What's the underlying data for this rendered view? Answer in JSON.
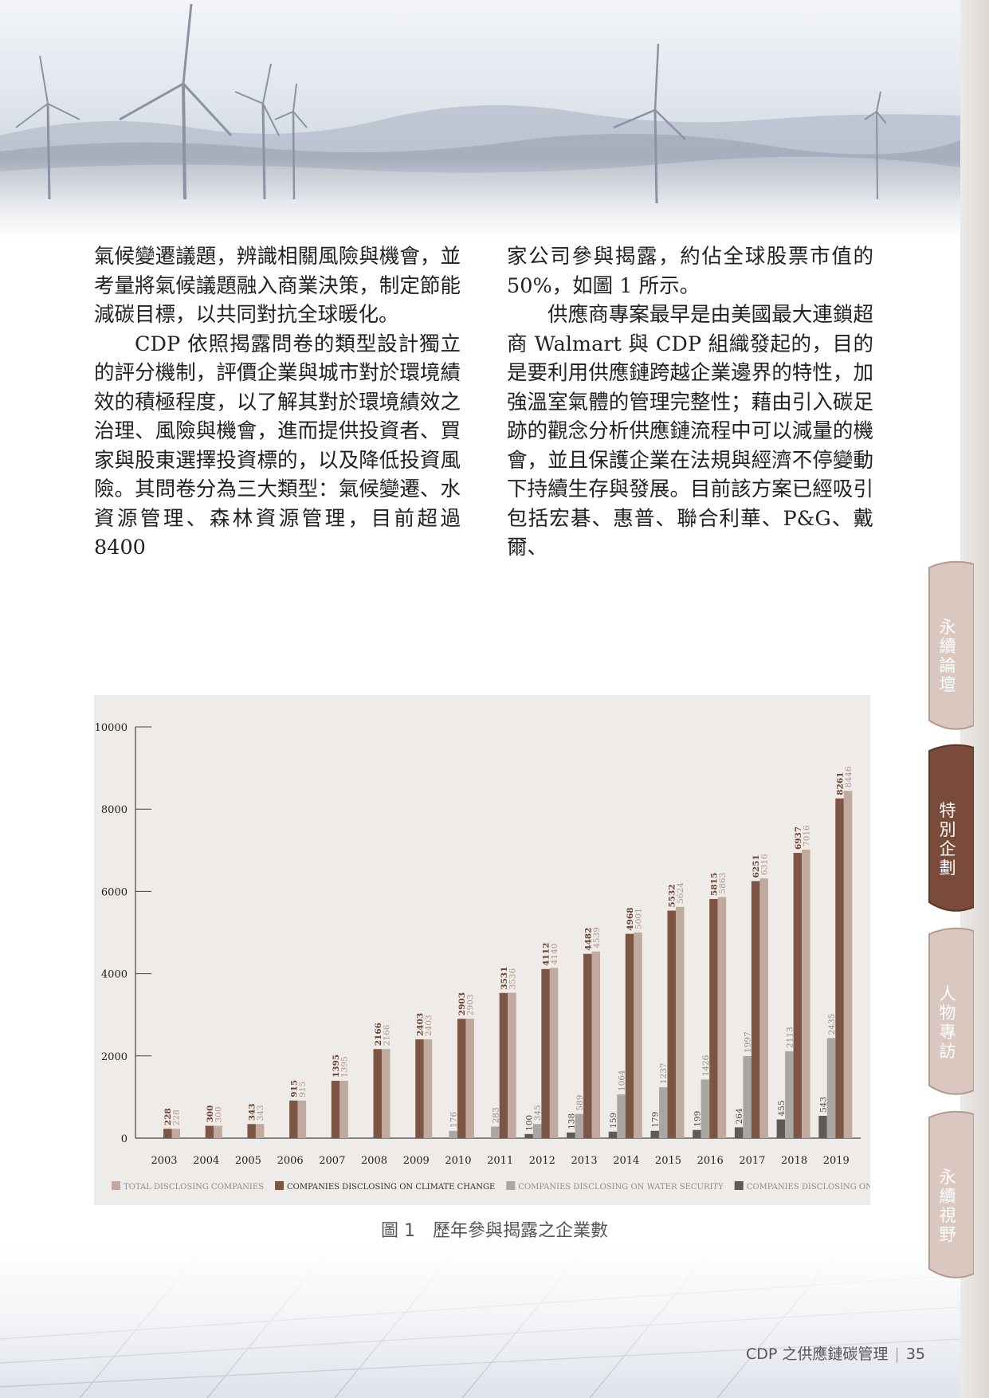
{
  "body": {
    "col_left": [
      "氣候變遷議題，辨識相關風險與機會，並考量將氣候議題融入商業決策，制定節能減碳目標，以共同對抗全球暖化。",
      "CDP 依照揭露問卷的類型設計獨立的評分機制，評價企業與城市對於環境績效的積極程度，以了解其對於環境績效之治理、風險與機會，進而提供投資者、買家與股東選擇投資標的，以及降低投資風險。其問卷分為三大類型：氣候變遷、水資源管理、森林資源管理，目前超過 8400"
    ],
    "col_right": [
      "家公司參與揭露，約佔全球股票市值的 50%，如圖 1 所示。",
      "供應商專案最早是由美國最大連鎖超商 Walmart 與 CDP 組織發起的，目的是要利用供應鏈跨越企業邊界的特性，加強溫室氣體的管理完整性；藉由引入碳足跡的觀念分析供應鏈流程中可以減量的機會，並且保護企業在法規與經濟不停變動下持續生存與發展。目前該方案已經吸引包括宏碁、惠普、聯合利華、P&G、戴爾、"
    ]
  },
  "caption": {
    "number": "圖 1",
    "text": "歷年參與揭露之企業數"
  },
  "footer": {
    "title": "CDP 之供應鏈碳管理",
    "page": "35"
  },
  "side_tabs": [
    {
      "label": "永續論壇",
      "active": false
    },
    {
      "label": "特別企劃",
      "active": true
    },
    {
      "label": "人物專訪",
      "active": false
    },
    {
      "label": "永續視野",
      "active": false
    }
  ],
  "colors": {
    "total": "#c0a99d",
    "climate": "#7d5544",
    "water": "#a9a6a4",
    "forests": "#5d5a58",
    "panel": "#efebe8",
    "tab_active": "#7a4a3a",
    "tab_inactive": "#d7c4bd"
  },
  "chart_data": {
    "type": "bar",
    "categories": [
      "2003",
      "2004",
      "2005",
      "2006",
      "2007",
      "2008",
      "2009",
      "2010",
      "2011",
      "2012",
      "2013",
      "2014",
      "2015",
      "2016",
      "2017",
      "2018",
      "2019"
    ],
    "ylim": [
      0,
      10000
    ],
    "yticks": [
      "0",
      "2000",
      "4000",
      "6000",
      "8000",
      "10000"
    ],
    "legend_position": "bottom",
    "series": [
      {
        "key": "forests",
        "name": "COMPANIES DISCLOSING ON FORESTS",
        "values": [
          null,
          null,
          null,
          null,
          null,
          null,
          null,
          null,
          null,
          100,
          138,
          159,
          179,
          199,
          264,
          455,
          543
        ]
      },
      {
        "key": "water",
        "name": "COMPANIES DISCLOSING ON WATER SECURITY",
        "values": [
          null,
          null,
          null,
          null,
          null,
          null,
          null,
          176,
          283,
          345,
          589,
          1064,
          1237,
          1426,
          1997,
          2113,
          2435
        ]
      },
      {
        "key": "climate",
        "name": "COMPANIES DISCLOSING ON CLIMATE CHANGE",
        "values": [
          228,
          300,
          343,
          915,
          1395,
          2166,
          2403,
          2903,
          3531,
          4112,
          4482,
          4968,
          5532,
          5815,
          6251,
          6937,
          8261
        ]
      },
      {
        "key": "total",
        "name": "TOTAL DISCLOSING COMPANIES",
        "values": [
          228,
          300,
          343,
          915,
          1395,
          2166,
          2403,
          2903,
          3536,
          4140,
          4539,
          5001,
          5624,
          5863,
          6316,
          7016,
          8446
        ]
      }
    ],
    "legend_order": [
      "total",
      "climate",
      "water",
      "forests"
    ]
  }
}
